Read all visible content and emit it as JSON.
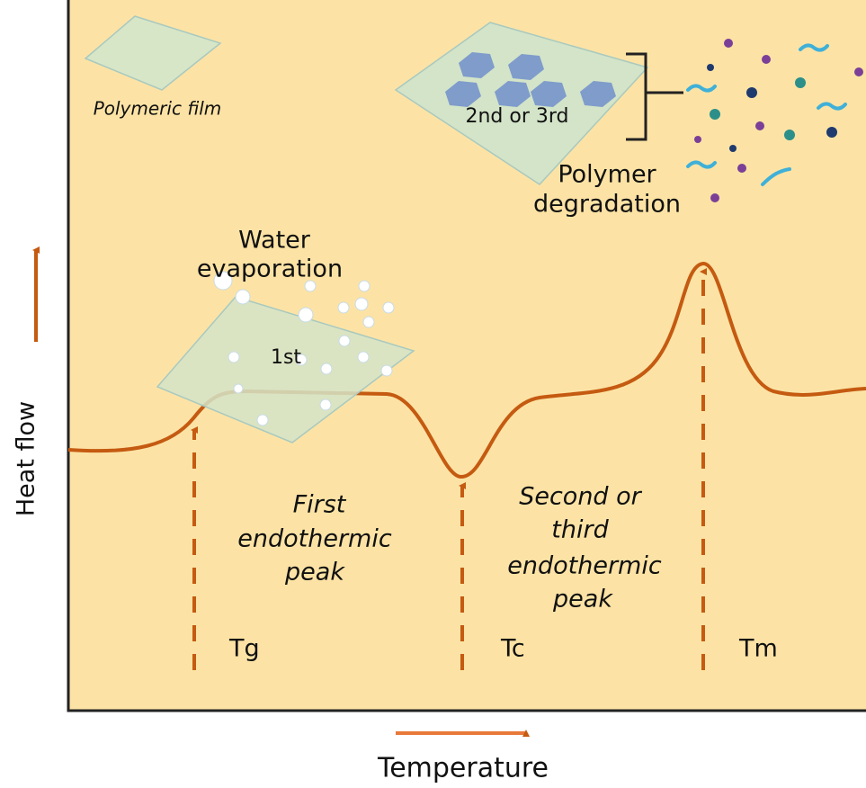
{
  "axes": {
    "y_label": "Heat flow",
    "x_label": "Temperature"
  },
  "films": {
    "small": "Polymeric film",
    "first": "1st",
    "second": "2nd or 3rd"
  },
  "annotations": {
    "water": [
      "Water",
      "evaporation"
    ],
    "degradation": [
      "Polymer",
      "degradation"
    ],
    "first_peak": [
      "First",
      "endothermic",
      "peak"
    ],
    "second_peak": [
      "Second or",
      "third",
      "endothermic",
      "peak"
    ]
  },
  "markers": [
    "Tg",
    "Tc",
    "Tm"
  ]
}
